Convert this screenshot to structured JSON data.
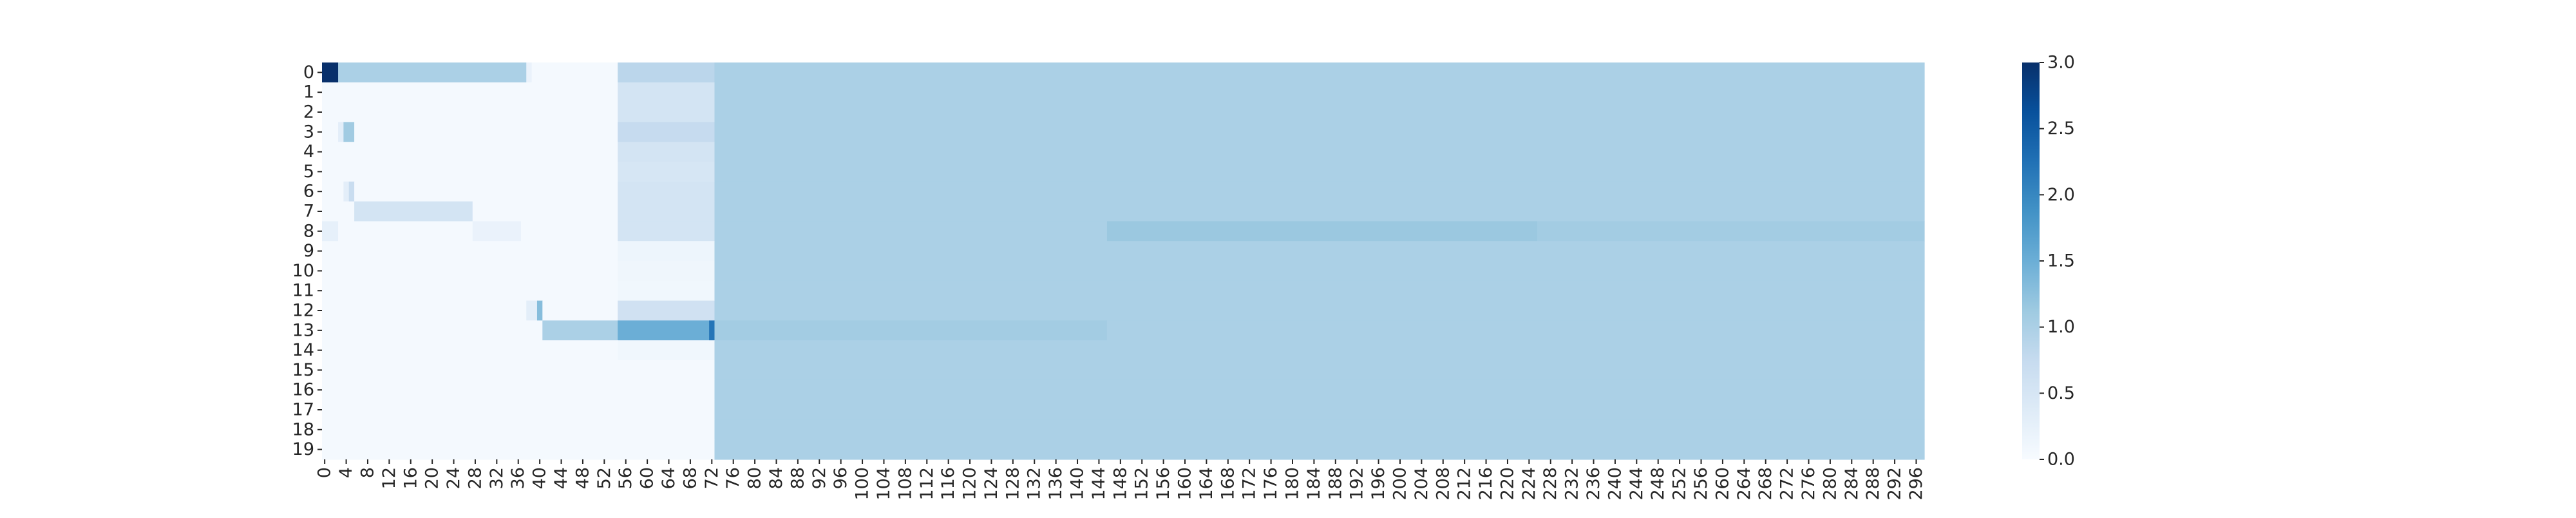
{
  "chart_data": {
    "type": "heatmap",
    "title": "",
    "xlabel": "",
    "ylabel": "",
    "n_cols": 298,
    "rows": [
      "0",
      "1",
      "2",
      "3",
      "4",
      "5",
      "6",
      "7",
      "8",
      "9",
      "10",
      "11",
      "12",
      "13",
      "14",
      "15",
      "16",
      "17",
      "18",
      "19"
    ],
    "x_tick_labels": [
      "0",
      "4",
      "8",
      "12",
      "16",
      "20",
      "24",
      "28",
      "32",
      "36",
      "40",
      "44",
      "48",
      "52",
      "56",
      "60",
      "64",
      "68",
      "72",
      "76",
      "80",
      "84",
      "88",
      "92",
      "96",
      "100",
      "104",
      "108",
      "112",
      "116",
      "120",
      "124",
      "128",
      "132",
      "136",
      "140",
      "144",
      "148",
      "152",
      "156",
      "160",
      "164",
      "168",
      "172",
      "176",
      "180",
      "184",
      "188",
      "192",
      "196",
      "200",
      "204",
      "208",
      "212",
      "216",
      "220",
      "224",
      "228",
      "232",
      "236",
      "240",
      "244",
      "248",
      "252",
      "256",
      "260",
      "264",
      "268",
      "272",
      "276",
      "280",
      "284",
      "288",
      "292",
      "296"
    ],
    "colormap": "Blues",
    "color_range": [
      0,
      3
    ],
    "colorbar_ticks": [
      "0.0",
      "0.5",
      "1.0",
      "1.5",
      "2.0",
      "2.5",
      "3.0"
    ],
    "background_value": 0.05,
    "value_segments": [
      {
        "row": 0,
        "start": 0,
        "end": 3,
        "value": 3.0
      },
      {
        "row": 0,
        "start": 3,
        "end": 38,
        "value": 1.0
      },
      {
        "row": 0,
        "start": 38,
        "end": 39,
        "value": 0.2
      },
      {
        "row": 0,
        "start": 55,
        "end": 73,
        "value": 0.85
      },
      {
        "row": 1,
        "start": 55,
        "end": 73,
        "value": 0.55
      },
      {
        "row": 2,
        "start": 55,
        "end": 73,
        "value": 0.55
      },
      {
        "row": 3,
        "start": 3,
        "end": 4,
        "value": 0.3
      },
      {
        "row": 3,
        "start": 4,
        "end": 6,
        "value": 1.1
      },
      {
        "row": 3,
        "start": 55,
        "end": 73,
        "value": 0.75
      },
      {
        "row": 4,
        "start": 55,
        "end": 73,
        "value": 0.55
      },
      {
        "row": 5,
        "start": 55,
        "end": 73,
        "value": 0.5
      },
      {
        "row": 6,
        "start": 4,
        "end": 5,
        "value": 0.3
      },
      {
        "row": 6,
        "start": 5,
        "end": 6,
        "value": 0.7
      },
      {
        "row": 6,
        "start": 55,
        "end": 73,
        "value": 0.55
      },
      {
        "row": 7,
        "start": 6,
        "end": 28,
        "value": 0.55
      },
      {
        "row": 7,
        "start": 55,
        "end": 73,
        "value": 0.55
      },
      {
        "row": 8,
        "start": 0,
        "end": 3,
        "value": 0.25
      },
      {
        "row": 8,
        "start": 28,
        "end": 37,
        "value": 0.2
      },
      {
        "row": 8,
        "start": 55,
        "end": 73,
        "value": 0.55
      },
      {
        "row": 8,
        "start": 146,
        "end": 226,
        "value": 1.15
      },
      {
        "row": 8,
        "start": 226,
        "end": 298,
        "value": 1.08
      },
      {
        "row": 9,
        "start": 55,
        "end": 73,
        "value": 0.15
      },
      {
        "row": 10,
        "start": 55,
        "end": 73,
        "value": 0.12
      },
      {
        "row": 11,
        "start": 55,
        "end": 73,
        "value": 0.1
      },
      {
        "row": 12,
        "start": 38,
        "end": 40,
        "value": 0.3
      },
      {
        "row": 12,
        "start": 40,
        "end": 41,
        "value": 1.3
      },
      {
        "row": 12,
        "start": 55,
        "end": 73,
        "value": 0.6
      },
      {
        "row": 13,
        "start": 41,
        "end": 55,
        "value": 1.0
      },
      {
        "row": 13,
        "start": 55,
        "end": 73,
        "value": 1.5
      },
      {
        "row": 13,
        "start": 72,
        "end": 73,
        "value": 2.2
      },
      {
        "row": 13,
        "start": 73,
        "end": 146,
        "value": 1.08
      },
      {
        "row": 14,
        "start": 55,
        "end": 73,
        "value": 0.1
      }
    ],
    "fill_from_col": 73,
    "fill_value": 1.0
  },
  "colors": {
    "cmap_stops": [
      "#f7fbff",
      "#deebf7",
      "#c6dbef",
      "#9ecae1",
      "#6baed6",
      "#4292c6",
      "#2171b5",
      "#08519c",
      "#08306b"
    ]
  }
}
